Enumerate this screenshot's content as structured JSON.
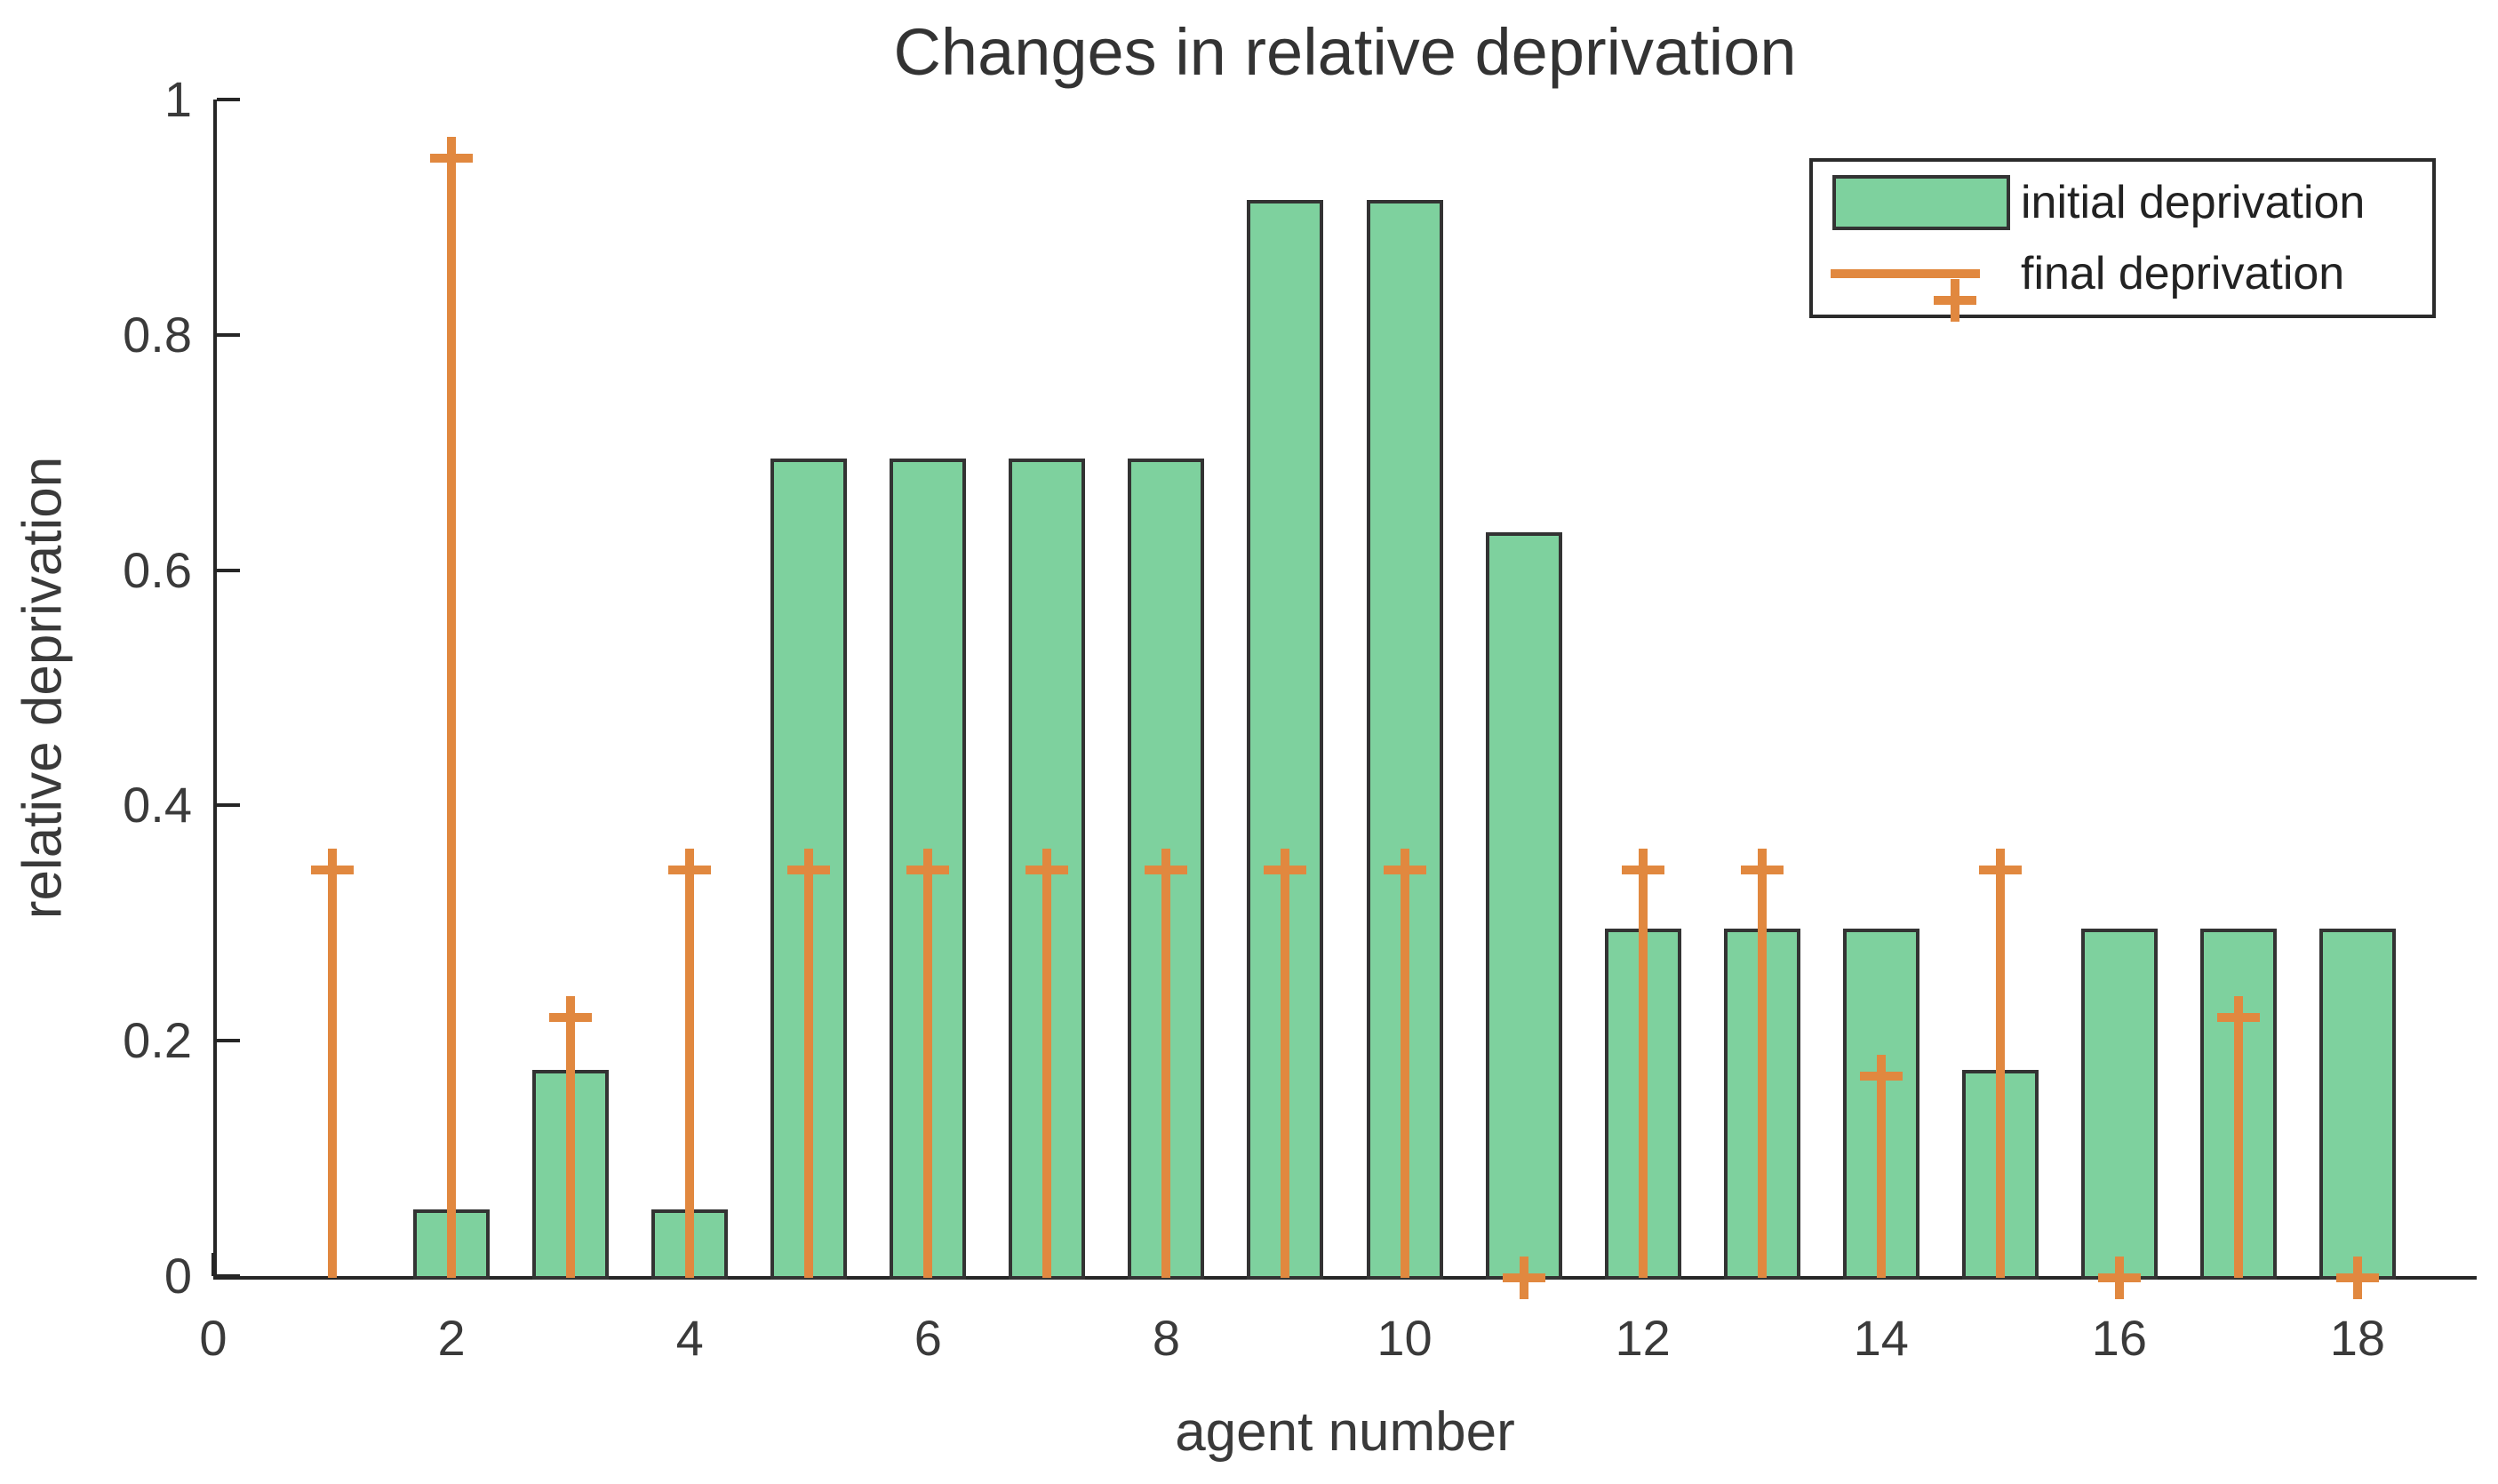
{
  "figure": {
    "title": "Changes in relative deprivation",
    "xlabel": "agent number",
    "ylabel": "relative deprivation"
  },
  "chart_data": {
    "type": "bar",
    "title": "Changes in relative deprivation",
    "xlabel": "agent number",
    "ylabel": "relative deprivation",
    "xlim": [
      0,
      19
    ],
    "ylim": [
      0,
      1
    ],
    "grid": false,
    "legend_position": "upper right",
    "background": "#ffffff",
    "axis_color": "#262626",
    "x_tick_values": [
      0,
      2,
      4,
      6,
      8,
      10,
      12,
      14,
      16,
      18
    ],
    "x_tick_labels": [
      "0",
      "2",
      "4",
      "6",
      "8",
      "10",
      "12",
      "14",
      "16",
      "18"
    ],
    "y_tick_values": [
      0,
      0.2,
      0.4,
      0.6,
      0.8,
      1
    ],
    "y_tick_labels": [
      "0",
      "0.2",
      "0.4",
      "0.6",
      "0.8",
      "1"
    ],
    "x": [
      1,
      2,
      3,
      4,
      5,
      6,
      7,
      8,
      9,
      10,
      11,
      12,
      13,
      14,
      15,
      16,
      17,
      18
    ],
    "series": [
      {
        "name": "initial deprivation",
        "type": "bar",
        "color": "#7ed19e",
        "edge_color": "#333333",
        "values": [
          0,
          0.057,
          0.175,
          0.057,
          0.695,
          0.695,
          0.695,
          0.695,
          0.915,
          0.915,
          0.632,
          0.295,
          0.295,
          0.295,
          0.175,
          0.295,
          0.295,
          0.295
        ]
      },
      {
        "name": "final deprivation",
        "type": "stem",
        "marker": "plus",
        "color": "#e1883f",
        "values": [
          0.345,
          0.95,
          0.22,
          0.345,
          0.345,
          0.345,
          0.345,
          0.345,
          0.345,
          0.345,
          0,
          0.345,
          0.345,
          0.17,
          0.345,
          0,
          0.22,
          0
        ]
      }
    ]
  }
}
